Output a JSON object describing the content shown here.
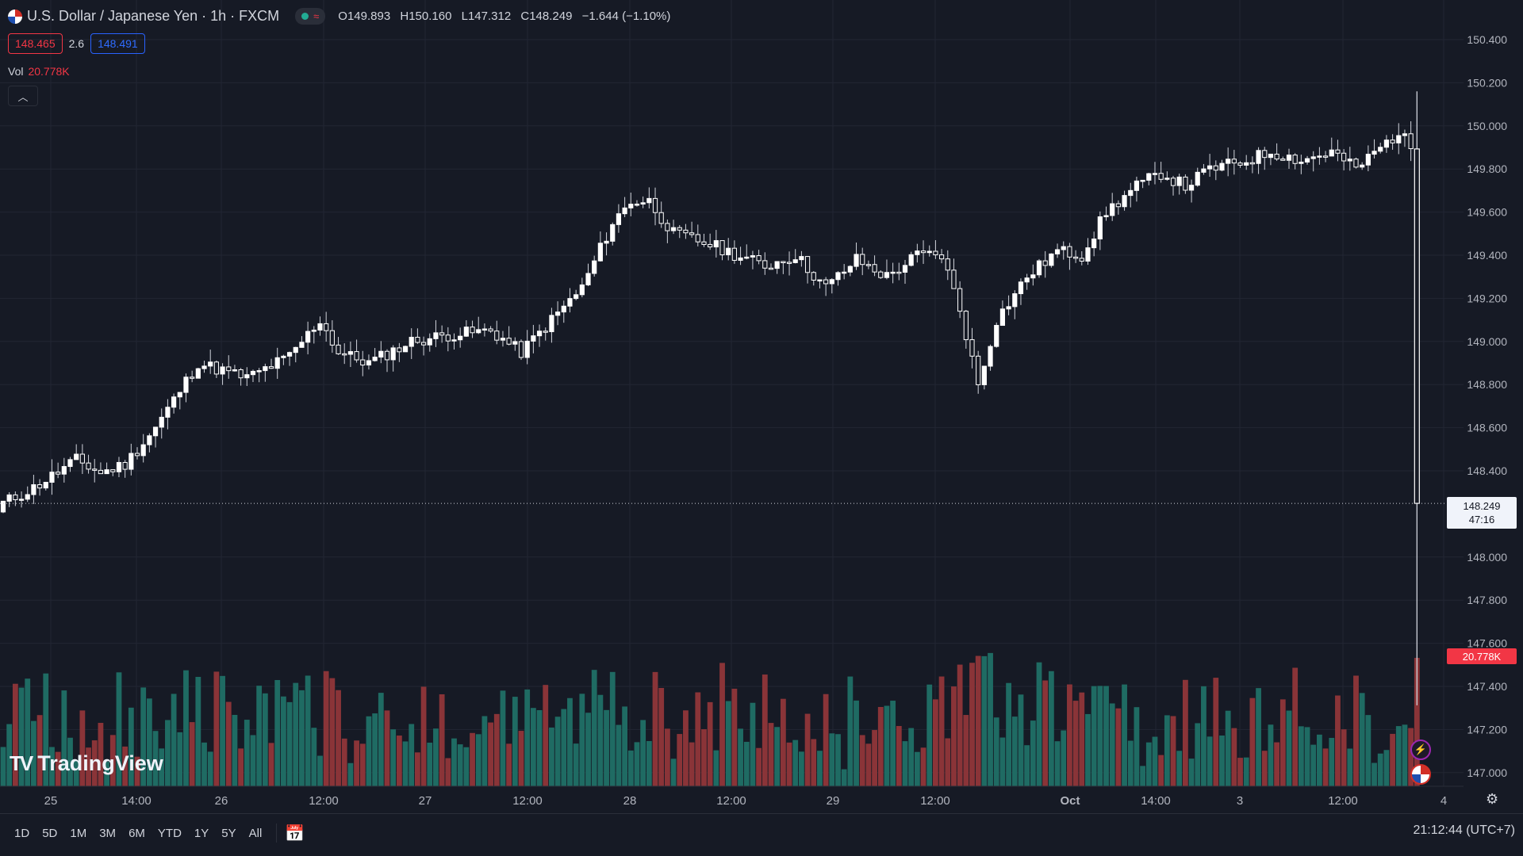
{
  "header": {
    "symbol": "U.S. Dollar / Japanese Yen · 1h · FXCM",
    "ohlc": [
      {
        "k": "O",
        "v": "149.893"
      },
      {
        "k": "H",
        "v": "150.160"
      },
      {
        "k": "L",
        "v": "147.312"
      },
      {
        "k": "C",
        "v": "148.249"
      }
    ],
    "change": "−1.644 (−1.10%)",
    "bid": "148.465",
    "spread": "2.6",
    "ask": "148.491",
    "vol_label": "Vol",
    "vol_value": "20.778K",
    "collapse_icon": "chevron-up-icon",
    "status_icon": "market-open-icon",
    "wave_icon": "wave-icon"
  },
  "price_badge": {
    "price": "148.249",
    "countdown": "47:16"
  },
  "volume_badge": "20.778K",
  "watermark": "TradingView",
  "timeframes": [
    "1D",
    "5D",
    "1M",
    "3M",
    "6M",
    "YTD",
    "1Y",
    "5Y",
    "All"
  ],
  "calendar_icon": "calendar-range-icon",
  "settings_icon": "gear-icon",
  "event_icons": [
    "lightning-icon",
    "us-flag-icon"
  ],
  "clock": "21:12:44 (UTC+7)",
  "colors": {
    "up": "#ffffff",
    "down": "#ffffff",
    "vol_up": "#1f6b63",
    "vol_down": "#8a3438",
    "bg": "#161a25",
    "grid": "#222633",
    "badge_red": "#f23645"
  },
  "chart_data": {
    "type": "candlestick",
    "title": "U.S. Dollar / Japanese Yen · 1h · FXCM",
    "ylim": [
      146.95,
      150.5
    ],
    "y_ticks": [
      "150.400",
      "150.200",
      "150.000",
      "149.800",
      "149.600",
      "149.400",
      "149.200",
      "149.000",
      "148.800",
      "148.600",
      "148.400",
      "148.249",
      "148.000",
      "147.800",
      "147.600",
      "147.400",
      "147.200",
      "147.000"
    ],
    "x_tick_labels": [
      "25",
      "14:00",
      "26",
      "12:00",
      "27",
      "12:00",
      "28",
      "12:00",
      "29",
      "12:00",
      "Oct",
      "14:00",
      "3",
      "12:00",
      "4"
    ],
    "last_price": 148.249,
    "series": [
      {
        "name": "USDJPY",
        "anchors": [
          [
            0,
            148.25
          ],
          [
            5,
            148.32
          ],
          [
            12,
            148.45
          ],
          [
            16,
            148.39
          ],
          [
            20,
            148.43
          ],
          [
            25,
            148.6
          ],
          [
            32,
            148.9
          ],
          [
            40,
            148.83
          ],
          [
            47,
            148.93
          ],
          [
            52,
            149.1
          ],
          [
            55,
            148.95
          ],
          [
            60,
            148.9
          ],
          [
            67,
            149.0
          ],
          [
            73,
            149.03
          ],
          [
            80,
            149.05
          ],
          [
            85,
            148.95
          ],
          [
            90,
            149.1
          ],
          [
            95,
            149.25
          ],
          [
            100,
            149.55
          ],
          [
            103,
            149.65
          ],
          [
            106,
            149.65
          ],
          [
            110,
            149.5
          ],
          [
            116,
            149.45
          ],
          [
            125,
            149.35
          ],
          [
            130,
            149.4
          ],
          [
            135,
            149.25
          ],
          [
            140,
            149.38
          ],
          [
            145,
            149.3
          ],
          [
            150,
            149.4
          ],
          [
            154,
            149.4
          ],
          [
            157,
            149.15
          ],
          [
            160,
            148.8
          ],
          [
            163,
            149.1
          ],
          [
            168,
            149.3
          ],
          [
            173,
            149.42
          ],
          [
            177,
            149.4
          ],
          [
            181,
            149.6
          ],
          [
            186,
            149.72
          ],
          [
            190,
            149.78
          ],
          [
            194,
            149.72
          ],
          [
            198,
            149.8
          ],
          [
            203,
            149.83
          ],
          [
            208,
            149.88
          ],
          [
            213,
            149.84
          ],
          [
            218,
            149.88
          ],
          [
            222,
            149.8
          ],
          [
            226,
            149.9
          ],
          [
            229,
            149.97
          ],
          [
            231,
            149.9
          ]
        ],
        "final_candle": {
          "open": 149.893,
          "high": 150.16,
          "low": 147.312,
          "close": 148.249
        }
      }
    ],
    "volume_series": {
      "name": "Vol",
      "last": 20.778,
      "unit": "K"
    }
  }
}
